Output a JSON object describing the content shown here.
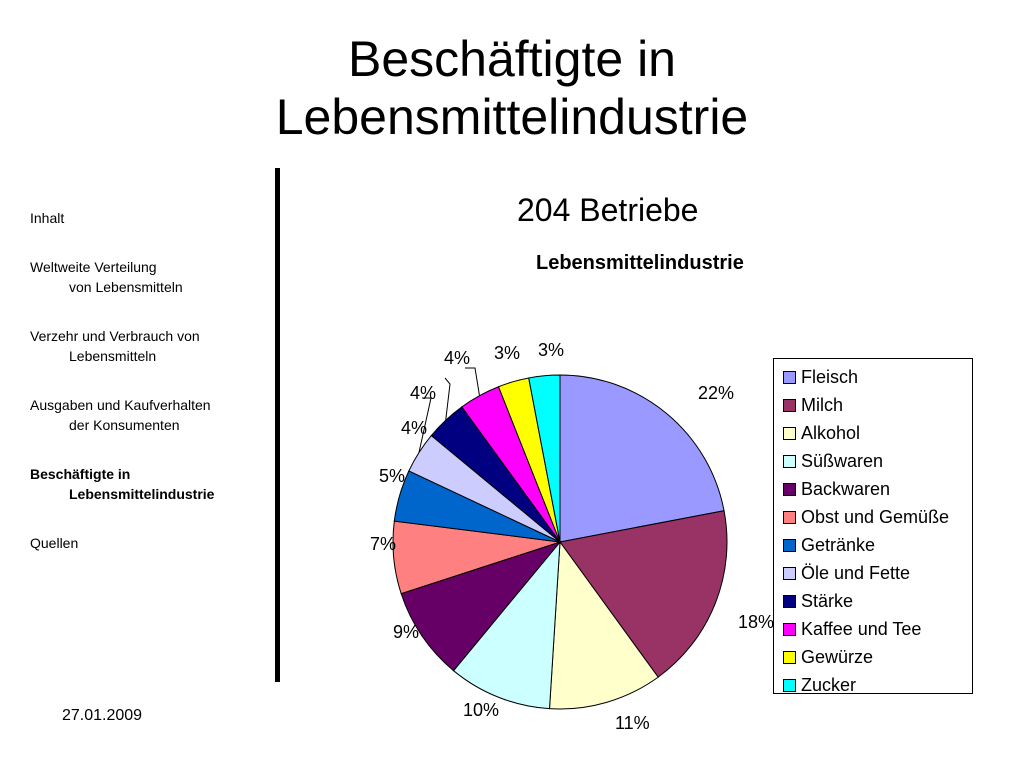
{
  "slide": {
    "title_line1": "Beschäftigte in",
    "title_line2": "Lebensmittelindustrie",
    "subtitle": "204 Betriebe",
    "date": "27.01.2009"
  },
  "sidebar": {
    "items": [
      {
        "line1": "Inhalt",
        "line2": "",
        "active": false
      },
      {
        "line1": "Weltweite Verteilung",
        "line2": "von Lebensmitteln",
        "active": false
      },
      {
        "line1": "Verzehr und Verbrauch von",
        "line2": "Lebensmitteln",
        "active": false
      },
      {
        "line1": "Ausgaben und Kaufverhalten",
        "line2": "der Konsumenten",
        "active": false
      },
      {
        "line1": "Beschäftigte in",
        "line2": "Lebensmittelindustrie",
        "active": true
      },
      {
        "line1": "Quellen",
        "line2": "",
        "active": false
      }
    ]
  },
  "chart_data": {
    "type": "pie",
    "title": "Lebensmittelindustrie",
    "legend_position": "right",
    "categories": [
      "Fleisch",
      "Milch",
      "Alkohol",
      "Süßwaren",
      "Backwaren",
      "Obst und Gemüße",
      "Getränke",
      "Öle und Fette",
      "Stärke",
      "Kaffee und Tee",
      "Gewürze",
      "Zucker"
    ],
    "values": [
      22,
      18,
      11,
      10,
      9,
      7,
      5,
      4,
      4,
      4,
      3,
      3
    ],
    "labels": [
      "22%",
      "18%",
      "11%",
      "10%",
      "9%",
      "7%",
      "5%",
      "4%",
      "4%",
      "4%",
      "3%",
      "3%"
    ],
    "colors": [
      "#9999FF",
      "#993366",
      "#FFFFCC",
      "#CCFFFF",
      "#660066",
      "#FF8080",
      "#0066CC",
      "#CCCCFF",
      "#000080",
      "#FF00FF",
      "#FFFF00",
      "#00FFFF"
    ]
  }
}
